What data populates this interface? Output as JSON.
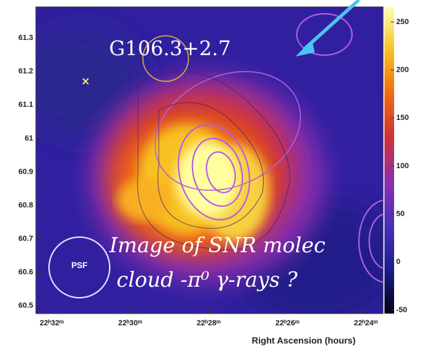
{
  "chart_data": {
    "type": "skymap",
    "source_label": "G106.3+2.7",
    "psf_label": "PSF",
    "annotation": [
      "Image of SNR molec",
      "cloud -π⁰ γ-rays ?"
    ],
    "x_label": "Right Ascension (hours)",
    "xlim": [
      22.54,
      22.3927
    ],
    "xticks": [
      {
        "value": 22.5333,
        "label": "22ʰ32ᵐ"
      },
      {
        "value": 22.5,
        "label": "22ʰ30ᵐ"
      },
      {
        "value": 22.4667,
        "label": "22ʰ28ᵐ"
      },
      {
        "value": 22.4333,
        "label": "22ʰ26ᵐ"
      },
      {
        "value": 22.4,
        "label": "22ʰ24ᵐ"
      }
    ],
    "ylim": [
      60.477,
      61.393
    ],
    "yticks": [
      61.3,
      61.2,
      61.1,
      61,
      60.9,
      60.8,
      60.7,
      60.6,
      60.5
    ],
    "clim": [
      -53.6,
      265.7
    ],
    "cticks": [
      250,
      200,
      150,
      100,
      50,
      0,
      -50
    ],
    "colormap": [
      "#000010",
      "#1a1f8f",
      "#4a2fb8",
      "#8a2fb0",
      "#d0303a",
      "#f06a10",
      "#f8c020",
      "#ffffb0"
    ]
  }
}
